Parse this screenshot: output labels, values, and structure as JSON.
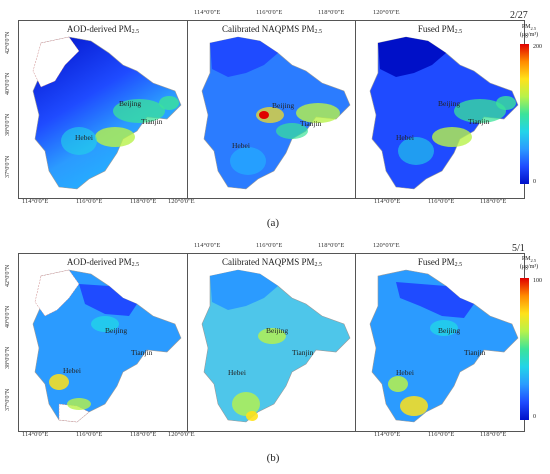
{
  "row_a": {
    "date": "2/27",
    "caption": "(a)",
    "titles": [
      "AOD-derived PM",
      "Calibrated NAQPMS PM",
      "Fused PM"
    ],
    "title_sub": "2.5",
    "top_ticks": [
      "114°0'0\"E",
      "116°0'0\"E",
      "118°0'0\"E",
      "120°0'0\"E"
    ],
    "bottom_ticks": [
      "114°0'0\"E",
      "116°0'0\"E",
      "118°0'0\"E",
      "120°0'0\"E"
    ],
    "left_ticks": [
      "42°0'0\"N",
      "40°0'0\"N",
      "38°0'0\"N",
      "37°0'0\"N"
    ],
    "cities": [
      "Beijing",
      "Tianjin",
      "Hebei"
    ],
    "legend": {
      "label": "PM",
      "sub": "2.5",
      "unit": "(μg/m³)",
      "max": "200",
      "min": "0"
    }
  },
  "row_b": {
    "date": "5/1",
    "caption": "(b)",
    "titles": [
      "AOD-derived PM",
      "Calibrated NAQPMS PM",
      "Fused PM"
    ],
    "title_sub": "2.5",
    "top_ticks": [
      "114°0'0\"E",
      "116°0'0\"E",
      "118°0'0\"E",
      "120°0'0\"E"
    ],
    "bottom_ticks": [
      "114°0'0\"E",
      "116°0'0\"E",
      "118°0'0\"E",
      "120°0'0\"E"
    ],
    "left_ticks": [
      "42°0'0\"N",
      "40°0'0\"N",
      "38°0'0\"N",
      "37°0'0\"N"
    ],
    "cities": [
      "Beijing",
      "Tianjin",
      "Hebei"
    ],
    "legend": {
      "label": "PM",
      "sub": "2.5",
      "unit": "(μg/m³)",
      "max": "100",
      "min": "0"
    }
  },
  "colors": {
    "scale": [
      "#0010c8",
      "#1f4bff",
      "#2b9bff",
      "#22d4e8",
      "#3be39a",
      "#b8f24a",
      "#ffe21a",
      "#ff8a00",
      "#e00000"
    ]
  }
}
